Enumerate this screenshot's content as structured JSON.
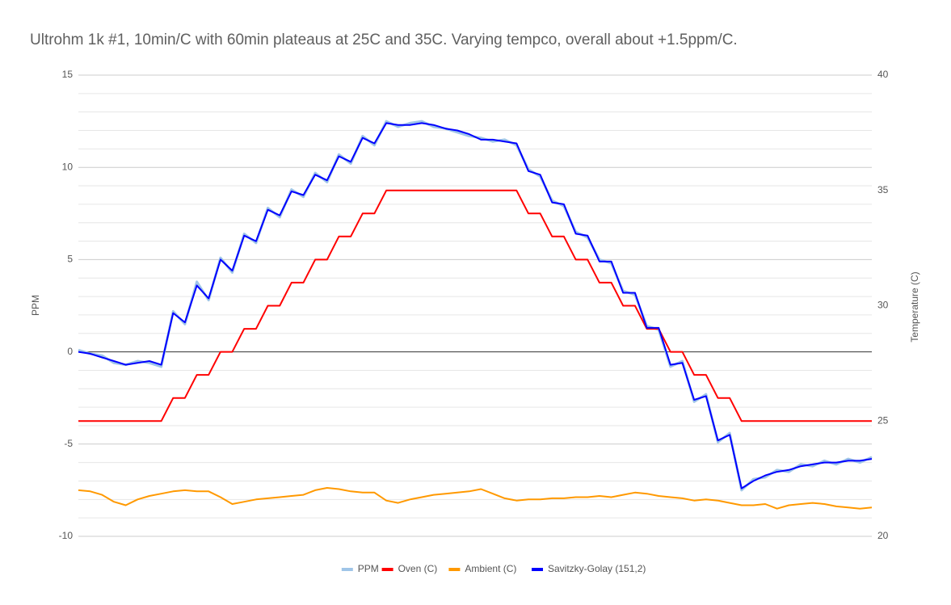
{
  "chart_data": {
    "type": "line",
    "title": "Ultrohm 1k #1, 10min/C with 60min plateaus at 25C and 35C.  Varying tempco, overall about +1.5ppm/C.",
    "y_label": "PPM",
    "y2_label": "Temperature (C)",
    "ylim": [
      -10,
      15
    ],
    "yticks": [
      15,
      10,
      5,
      0,
      -5,
      -10
    ],
    "ygrid": [
      14,
      13,
      12,
      11,
      9,
      8,
      7,
      6,
      4,
      3,
      2,
      1,
      -1,
      -2,
      -3,
      -4,
      -6,
      -7,
      -8,
      -9
    ],
    "y2lim": [
      20,
      40
    ],
    "y2ticks": [
      40,
      35,
      30,
      25,
      20
    ],
    "legend": "bottom",
    "series": [
      {
        "name": "PPM",
        "color": "#9fc5e8",
        "values": [
          0.1,
          -0.1,
          -0.2,
          -0.6,
          -0.7,
          -0.5,
          -0.6,
          -0.8,
          2.2,
          1.5,
          3.8,
          2.8,
          5.1,
          4.3,
          6.4,
          5.9,
          7.8,
          7.3,
          8.8,
          8.4,
          9.7,
          9.2,
          10.7,
          10.2,
          11.7,
          11.2,
          12.5,
          12.2,
          12.4,
          12.5,
          12.2,
          12.1,
          11.9,
          11.7,
          11.6,
          11.4,
          11.5,
          11.2,
          9.9,
          9.5,
          8.2,
          7.9,
          6.5,
          6.2,
          5.0,
          4.8,
          3.3,
          3.1,
          1.4,
          1.2,
          -0.8,
          -0.5,
          -2.7,
          -2.3,
          -4.9,
          -4.4,
          -7.5,
          -6.9,
          -6.8,
          -6.4,
          -6.5,
          -6.1,
          -6.2,
          -5.9,
          -6.1,
          -5.8,
          -6.0,
          -5.7
        ]
      },
      {
        "name": "Oven (C)",
        "color": "#ff0000",
        "axis": "y2",
        "values": [
          25,
          25,
          25,
          25,
          25,
          25,
          25,
          25,
          26,
          26,
          27,
          27,
          28,
          28,
          29,
          29,
          30,
          30,
          31,
          31,
          32,
          32,
          33,
          33,
          34,
          34,
          35,
          35,
          35,
          35,
          35,
          35,
          35,
          35,
          35,
          35,
          35,
          35,
          34,
          34,
          33,
          33,
          32,
          32,
          31,
          31,
          30,
          30,
          29,
          29,
          28,
          28,
          27,
          27,
          26,
          26,
          25,
          25,
          25,
          25,
          25,
          25,
          25,
          25,
          25,
          25,
          25,
          25
        ]
      },
      {
        "name": "Ambient (C)",
        "color": "#ff9900",
        "axis": "y2",
        "values": [
          22.0,
          21.95,
          21.8,
          21.5,
          21.35,
          21.6,
          21.75,
          21.85,
          21.95,
          22.0,
          21.95,
          21.95,
          21.7,
          21.4,
          21.5,
          21.6,
          21.65,
          21.7,
          21.75,
          21.8,
          22.0,
          22.1,
          22.05,
          21.95,
          21.9,
          21.9,
          21.55,
          21.45,
          21.6,
          21.7,
          21.8,
          21.85,
          21.9,
          21.95,
          22.05,
          21.85,
          21.65,
          21.55,
          21.6,
          21.6,
          21.65,
          21.65,
          21.7,
          21.7,
          21.75,
          21.7,
          21.8,
          21.9,
          21.85,
          21.75,
          21.7,
          21.65,
          21.55,
          21.6,
          21.55,
          21.45,
          21.35,
          21.35,
          21.4,
          21.2,
          21.35,
          21.4,
          21.45,
          21.4,
          21.3,
          21.25,
          21.2,
          21.25
        ]
      },
      {
        "name": "Savitzky-Golay (151,2)",
        "color": "#0000ff",
        "values": [
          0.0,
          -0.1,
          -0.3,
          -0.5,
          -0.7,
          -0.6,
          -0.5,
          -0.7,
          2.1,
          1.6,
          3.6,
          2.9,
          5.0,
          4.4,
          6.3,
          6.0,
          7.7,
          7.4,
          8.7,
          8.5,
          9.6,
          9.3,
          10.6,
          10.3,
          11.6,
          11.3,
          12.4,
          12.3,
          12.3,
          12.4,
          12.3,
          12.1,
          12.0,
          11.8,
          11.5,
          11.5,
          11.4,
          11.3,
          9.8,
          9.6,
          8.1,
          8.0,
          6.4,
          6.3,
          4.9,
          4.9,
          3.2,
          3.2,
          1.3,
          1.3,
          -0.7,
          -0.6,
          -2.6,
          -2.4,
          -4.8,
          -4.5,
          -7.4,
          -7.0,
          -6.7,
          -6.5,
          -6.4,
          -6.2,
          -6.1,
          -6.0,
          -6.0,
          -5.9,
          -5.9,
          -5.8
        ]
      }
    ]
  }
}
